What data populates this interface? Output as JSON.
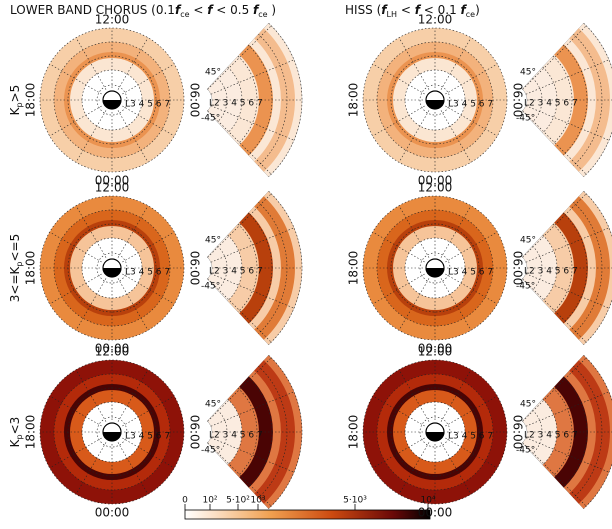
{
  "titles": [
    {
      "parts": [
        {
          "text": "LOWER BAND CHORUS (0.1"
        },
        {
          "text": "f",
          "italic": true
        },
        {
          "text": "ce",
          "sub": true
        },
        {
          "text": " < "
        },
        {
          "text": "f",
          "italic": true
        },
        {
          "text": " < 0.5 "
        },
        {
          "text": "f",
          "italic": true
        },
        {
          "text": "ce",
          "sub": true
        },
        {
          "text": " )"
        }
      ]
    },
    {
      "parts": [
        {
          "text": "HISS ("
        },
        {
          "text": "f",
          "italic": true
        },
        {
          "text": "LH",
          "sub": true
        },
        {
          "text": " < "
        },
        {
          "text": "f",
          "italic": true
        },
        {
          "text": " < 0.1 "
        },
        {
          "text": "f",
          "italic": true
        },
        {
          "text": "ce",
          "sub": true
        },
        {
          "text": ")"
        }
      ]
    }
  ],
  "rows": [
    {
      "parts": [
        {
          "text": "K"
        },
        {
          "text": "p",
          "sub": true
        },
        {
          "text": ">5"
        }
      ]
    },
    {
      "parts": [
        {
          "text": "3<=K"
        },
        {
          "text": "p",
          "sub": true
        },
        {
          "text": "<=5"
        }
      ]
    },
    {
      "parts": [
        {
          "text": "K"
        },
        {
          "text": "p",
          "sub": true
        },
        {
          "text": "<3"
        }
      ]
    }
  ],
  "dial_labels": {
    "top": "12:00",
    "left": "18:00",
    "bottom": "00:00",
    "right": "06:00",
    "l_shells": "L3 4 5 6 7"
  },
  "wedge_labels": {
    "north": "45°",
    "south": "-45°",
    "l_shells": "L2 3 4 5 6 7"
  },
  "colorbar": {
    "ticks": [
      "0",
      "10²",
      "5·10²",
      "10³",
      "5·10³",
      "10⁴"
    ]
  }
}
